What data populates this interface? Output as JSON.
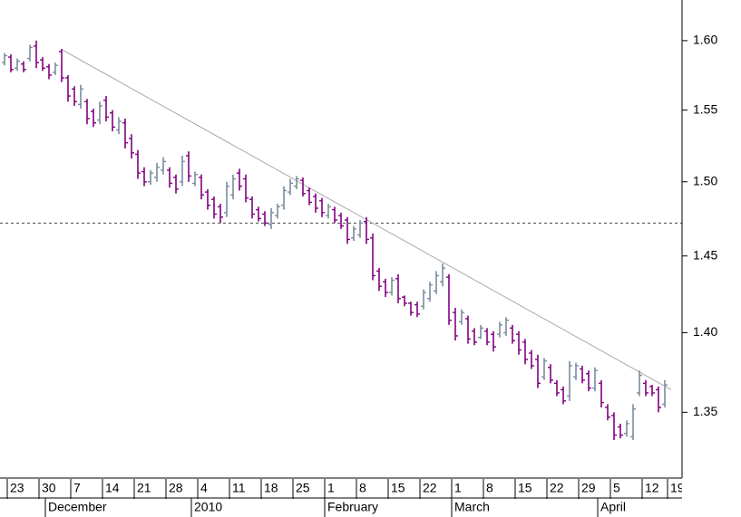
{
  "chart_data": {
    "type": "ohlc",
    "categories": [
      null,
      "23",
      null,
      null,
      null,
      null,
      "30",
      null,
      null,
      null,
      null,
      "7",
      null,
      null,
      null,
      null,
      "14",
      null,
      null,
      null,
      null,
      "21",
      null,
      null,
      null,
      null,
      "28",
      null,
      null,
      null,
      null,
      "4",
      null,
      null,
      null,
      null,
      "11",
      null,
      null,
      null,
      null,
      "18",
      null,
      null,
      null,
      null,
      "25",
      null,
      null,
      null,
      null,
      "1",
      null,
      null,
      null,
      null,
      "8",
      null,
      null,
      null,
      null,
      "15",
      null,
      null,
      null,
      null,
      "22",
      null,
      null,
      null,
      null,
      "1",
      null,
      null,
      null,
      null,
      "8",
      null,
      null,
      null,
      null,
      "15",
      null,
      null,
      null,
      null,
      "22",
      null,
      null,
      null,
      null,
      "29",
      null,
      null,
      null,
      null,
      "5",
      null,
      null,
      null,
      null,
      "12",
      null,
      null,
      null,
      "19"
    ],
    "months": [
      null,
      null,
      null,
      null,
      null,
      null,
      null,
      "December",
      null,
      null,
      null,
      null,
      null,
      null,
      null,
      null,
      null,
      null,
      null,
      null,
      null,
      null,
      null,
      null,
      null,
      null,
      null,
      null,
      null,
      null,
      "2010",
      null,
      null,
      null,
      null,
      null,
      null,
      null,
      null,
      null,
      null,
      null,
      null,
      null,
      null,
      null,
      null,
      null,
      null,
      null,
      null,
      "February",
      null,
      null,
      null,
      null,
      null,
      null,
      null,
      null,
      null,
      null,
      null,
      null,
      null,
      null,
      null,
      null,
      null,
      null,
      null,
      "March",
      null,
      null,
      null,
      null,
      null,
      null,
      null,
      null,
      null,
      null,
      null,
      null,
      null,
      null,
      null,
      null,
      null,
      null,
      null,
      null,
      null,
      null,
      "April",
      null,
      null,
      null,
      null,
      null,
      null,
      null,
      null,
      null,
      null,
      null
    ],
    "up_color": "#7a8c9c",
    "down_color": "#800080",
    "ohlc": [
      [
        1.584,
        1.591,
        1.582,
        1.589
      ],
      [
        1.588,
        1.59,
        1.577,
        1.579
      ],
      [
        1.58,
        1.587,
        1.578,
        1.585
      ],
      [
        1.583,
        1.585,
        1.577,
        1.579
      ],
      [
        1.587,
        1.597,
        1.585,
        1.595
      ],
      [
        1.596,
        1.6,
        1.58,
        1.584
      ],
      [
        1.586,
        1.588,
        1.578,
        1.58
      ],
      [
        1.581,
        1.583,
        1.572,
        1.575
      ],
      [
        1.577,
        1.584,
        1.575,
        1.582
      ],
      [
        1.592,
        1.594,
        1.57,
        1.573
      ],
      [
        1.573,
        1.575,
        1.556,
        1.56
      ],
      [
        1.565,
        1.567,
        1.553,
        1.556
      ],
      [
        1.554,
        1.568,
        1.551,
        1.565
      ],
      [
        1.556,
        1.558,
        1.54,
        1.544
      ],
      [
        1.549,
        1.551,
        1.538,
        1.541
      ],
      [
        1.543,
        1.556,
        1.54,
        1.553
      ],
      [
        1.557,
        1.56,
        1.542,
        1.545
      ],
      [
        1.548,
        1.55,
        1.535,
        1.538
      ],
      [
        1.536,
        1.545,
        1.533,
        1.542
      ],
      [
        1.541,
        1.544,
        1.523,
        1.527
      ],
      [
        1.53,
        1.533,
        1.516,
        1.52
      ],
      [
        1.519,
        1.522,
        1.502,
        1.506
      ],
      [
        1.507,
        1.51,
        1.497,
        1.5
      ],
      [
        1.5,
        1.508,
        1.498,
        1.506
      ],
      [
        1.503,
        1.513,
        1.5,
        1.51
      ],
      [
        1.508,
        1.517,
        1.505,
        1.514
      ],
      [
        1.508,
        1.51,
        1.496,
        1.499
      ],
      [
        1.503,
        1.505,
        1.492,
        1.495
      ],
      [
        1.5,
        1.518,
        1.497,
        1.514
      ],
      [
        1.518,
        1.521,
        1.5,
        1.504
      ],
      [
        1.499,
        1.507,
        1.497,
        1.505
      ],
      [
        1.503,
        1.505,
        1.488,
        1.491
      ],
      [
        1.493,
        1.495,
        1.481,
        1.484
      ],
      [
        1.488,
        1.49,
        1.475,
        1.478
      ],
      [
        1.483,
        1.485,
        1.472,
        1.476
      ],
      [
        1.479,
        1.5,
        1.476,
        1.497
      ],
      [
        1.491,
        1.505,
        1.488,
        1.502
      ],
      [
        1.506,
        1.509,
        1.494,
        1.497
      ],
      [
        1.502,
        1.505,
        1.486,
        1.489
      ],
      [
        1.488,
        1.49,
        1.475,
        1.478
      ],
      [
        1.481,
        1.483,
        1.473,
        1.475
      ],
      [
        1.478,
        1.48,
        1.47,
        1.472
      ],
      [
        1.471,
        1.482,
        1.468,
        1.479
      ],
      [
        1.477,
        1.485,
        1.475,
        1.483
      ],
      [
        1.484,
        1.497,
        1.481,
        1.494
      ],
      [
        1.493,
        1.502,
        1.491,
        1.499
      ],
      [
        1.497,
        1.504,
        1.495,
        1.502
      ],
      [
        1.501,
        1.503,
        1.49,
        1.492
      ],
      [
        1.494,
        1.496,
        1.484,
        1.486
      ],
      [
        1.49,
        1.492,
        1.479,
        1.482
      ],
      [
        1.487,
        1.489,
        1.476,
        1.479
      ],
      [
        1.477,
        1.485,
        1.475,
        1.483
      ],
      [
        1.481,
        1.483,
        1.472,
        1.474
      ],
      [
        1.477,
        1.479,
        1.468,
        1.47
      ],
      [
        1.474,
        1.476,
        1.458,
        1.461
      ],
      [
        1.462,
        1.47,
        1.46,
        1.468
      ],
      [
        1.464,
        1.474,
        1.462,
        1.472
      ],
      [
        1.473,
        1.476,
        1.458,
        1.461
      ],
      [
        1.462,
        1.465,
        1.434,
        1.437
      ],
      [
        1.44,
        1.442,
        1.427,
        1.43
      ],
      [
        1.433,
        1.435,
        1.423,
        1.426
      ],
      [
        1.426,
        1.436,
        1.424,
        1.434
      ],
      [
        1.435,
        1.438,
        1.419,
        1.422
      ],
      [
        1.423,
        1.424,
        1.417,
        1.419
      ],
      [
        1.419,
        1.42,
        1.411,
        1.413
      ],
      [
        1.418,
        1.42,
        1.41,
        1.412
      ],
      [
        1.417,
        1.428,
        1.415,
        1.426
      ],
      [
        1.422,
        1.433,
        1.42,
        1.431
      ],
      [
        1.427,
        1.44,
        1.425,
        1.437
      ],
      [
        1.433,
        1.445,
        1.43,
        1.442
      ],
      [
        1.436,
        1.438,
        1.405,
        1.408
      ],
      [
        1.413,
        1.416,
        1.395,
        1.398
      ],
      [
        1.407,
        1.415,
        1.405,
        1.413
      ],
      [
        1.409,
        1.411,
        1.393,
        1.396
      ],
      [
        1.401,
        1.403,
        1.392,
        1.394
      ],
      [
        1.397,
        1.405,
        1.396,
        1.403
      ],
      [
        1.401,
        1.403,
        1.392,
        1.394
      ],
      [
        1.399,
        1.401,
        1.388,
        1.391
      ],
      [
        1.399,
        1.407,
        1.397,
        1.405
      ],
      [
        1.4,
        1.41,
        1.398,
        1.408
      ],
      [
        1.403,
        1.405,
        1.393,
        1.395
      ],
      [
        1.399,
        1.401,
        1.386,
        1.389
      ],
      [
        1.394,
        1.396,
        1.38,
        1.383
      ],
      [
        1.387,
        1.389,
        1.377,
        1.379
      ],
      [
        1.383,
        1.386,
        1.365,
        1.368
      ],
      [
        1.372,
        1.384,
        1.37,
        1.382
      ],
      [
        1.378,
        1.38,
        1.368,
        1.37
      ],
      [
        1.368,
        1.37,
        1.36,
        1.362
      ],
      [
        1.364,
        1.366,
        1.355,
        1.357
      ],
      [
        1.36,
        1.382,
        1.357,
        1.379
      ],
      [
        1.372,
        1.381,
        1.37,
        1.379
      ],
      [
        1.377,
        1.379,
        1.368,
        1.37
      ],
      [
        1.374,
        1.376,
        1.363,
        1.365
      ],
      [
        1.365,
        1.378,
        1.363,
        1.376
      ],
      [
        1.368,
        1.37,
        1.353,
        1.356
      ],
      [
        1.353,
        1.355,
        1.345,
        1.347
      ],
      [
        1.348,
        1.35,
        1.333,
        1.336
      ],
      [
        1.341,
        1.343,
        1.334,
        1.336
      ],
      [
        1.337,
        1.345,
        1.335,
        1.343
      ],
      [
        1.335,
        1.355,
        1.333,
        1.352
      ],
      [
        1.362,
        1.376,
        1.36,
        1.373
      ],
      [
        1.368,
        1.37,
        1.36,
        1.362
      ],
      [
        1.366,
        1.367,
        1.36,
        1.362
      ],
      [
        1.364,
        1.366,
        1.35,
        1.353
      ],
      [
        1.355,
        1.37,
        1.353,
        1.367
      ],
      null
    ],
    "trendline": {
      "color": "#aaaaaa",
      "values": [
        null,
        null,
        null,
        null,
        null,
        null,
        null,
        null,
        null,
        1.5935,
        null,
        null,
        null,
        null,
        null,
        null,
        null,
        null,
        null,
        null,
        null,
        null,
        null,
        null,
        null,
        null,
        null,
        null,
        null,
        null,
        null,
        null,
        null,
        null,
        null,
        null,
        null,
        null,
        null,
        null,
        null,
        null,
        null,
        null,
        null,
        null,
        null,
        null,
        null,
        null,
        null,
        null,
        null,
        null,
        null,
        null,
        null,
        null,
        null,
        null,
        null,
        null,
        null,
        null,
        null,
        null,
        null,
        null,
        null,
        null,
        null,
        null,
        null,
        null,
        null,
        null,
        null,
        null,
        null,
        null,
        null,
        null,
        null,
        null,
        null,
        null,
        null,
        null,
        null,
        null,
        null,
        null,
        null,
        null,
        null,
        null,
        null,
        null,
        null,
        null,
        null,
        null,
        null,
        null,
        null,
        1.364
      ]
    },
    "hline": 1.472,
    "ylim": [
      1.31,
      1.63
    ],
    "log_scale": true,
    "yticks": [
      1.35,
      {
        "value": 1.4,
        "label": "1.40"
      },
      1.45,
      {
        "value": 1.5,
        "label": "1.50"
      },
      1.55,
      {
        "value": 1.6,
        "label": "1.60"
      }
    ]
  }
}
